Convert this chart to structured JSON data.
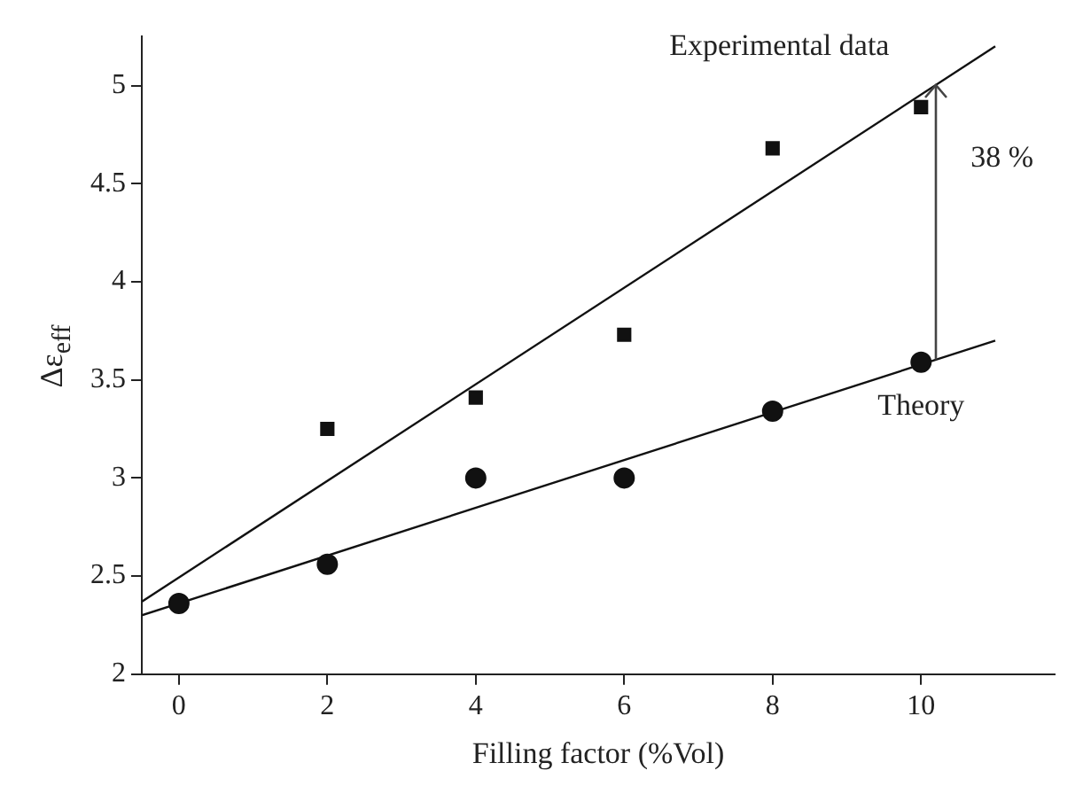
{
  "chart_data": {
    "type": "scatter",
    "xlabel": "Filling factor (%Vol)",
    "ylabel": "Δε$_{eff}$",
    "xlim": [
      -0.5,
      11.8
    ],
    "xticks": [
      0,
      2,
      4,
      6,
      8,
      10
    ],
    "ylim": [
      2,
      5.25
    ],
    "yticks": [
      2,
      2.5,
      3,
      3.5,
      4,
      4.5,
      5
    ],
    "grid": false,
    "legend": false,
    "series": [
      {
        "type": "scatter",
        "marker": "square",
        "color": "#111111",
        "x": [
          2,
          4,
          6,
          8,
          10
        ],
        "values": [
          3.25,
          3.41,
          3.73,
          4.68,
          4.89
        ]
      },
      {
        "type": "scatter",
        "marker": "circle",
        "color": "#111111",
        "x": [
          0,
          2,
          4,
          6,
          8,
          10
        ],
        "values": [
          2.36,
          2.56,
          3.0,
          3.0,
          3.34,
          3.59
        ]
      },
      {
        "type": "line",
        "name": "Experimental data",
        "marker": "none",
        "color": "#111111",
        "x": [
          -0.5,
          11
        ],
        "values": [
          2.37,
          5.2
        ]
      },
      {
        "type": "line",
        "name": "Theory",
        "marker": "none",
        "color": "#111111",
        "x": [
          -0.5,
          11
        ],
        "values": [
          2.3,
          3.7
        ]
      }
    ],
    "annotations": [
      "38 %"
    ]
  }
}
